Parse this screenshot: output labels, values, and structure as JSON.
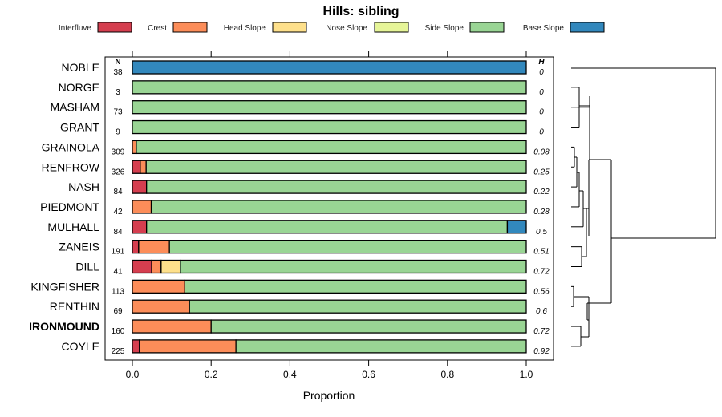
{
  "chart_data": {
    "type": "bar",
    "orientation": "horizontal",
    "stacked": true,
    "title": "Hills: sibling",
    "xlabel": "Proportion",
    "ylabel": "",
    "xlim": [
      0,
      1
    ],
    "xticks": [
      "0.0",
      "0.2",
      "0.4",
      "0.6",
      "0.8",
      "1.0"
    ],
    "legend_position": "top",
    "n_header": "N",
    "h_header": "H",
    "series": [
      {
        "name": "Interfluve",
        "color": "#d53e4f"
      },
      {
        "name": "Crest",
        "color": "#fc8d59"
      },
      {
        "name": "Head Slope",
        "color": "#fee08b"
      },
      {
        "name": "Nose Slope",
        "color": "#e6f598"
      },
      {
        "name": "Side Slope",
        "color": "#99d594"
      },
      {
        "name": "Base Slope",
        "color": "#3288bd"
      }
    ],
    "rows": [
      {
        "label": "NOBLE",
        "bold": false,
        "n": "38",
        "h": "0",
        "values": [
          0,
          0,
          0,
          0,
          0,
          1.0
        ]
      },
      {
        "label": "NORGE",
        "bold": false,
        "n": "3",
        "h": "0",
        "values": [
          0,
          0,
          0,
          0,
          1.0,
          0
        ]
      },
      {
        "label": "MASHAM",
        "bold": false,
        "n": "73",
        "h": "0",
        "values": [
          0,
          0,
          0,
          0,
          1.0,
          0
        ]
      },
      {
        "label": "GRANT",
        "bold": false,
        "n": "9",
        "h": "0",
        "values": [
          0,
          0,
          0,
          0,
          1.0,
          0
        ]
      },
      {
        "label": "GRAINOLA",
        "bold": false,
        "n": "309",
        "h": "0.08",
        "values": [
          0,
          0.01,
          0,
          0,
          0.99,
          0
        ]
      },
      {
        "label": "RENFROW",
        "bold": false,
        "n": "326",
        "h": "0.25",
        "values": [
          0.02,
          0.015,
          0,
          0,
          0.965,
          0
        ]
      },
      {
        "label": "NASH",
        "bold": false,
        "n": "84",
        "h": "0.22",
        "values": [
          0.036,
          0,
          0,
          0,
          0.964,
          0
        ]
      },
      {
        "label": "PIEDMONT",
        "bold": false,
        "n": "42",
        "h": "0.28",
        "values": [
          0,
          0.048,
          0,
          0,
          0.952,
          0
        ]
      },
      {
        "label": "MULHALL",
        "bold": false,
        "n": "84",
        "h": "0.5",
        "values": [
          0.036,
          0,
          0,
          0,
          0.916,
          0.048
        ]
      },
      {
        "label": "ZANEIS",
        "bold": false,
        "n": "191",
        "h": "0.51",
        "values": [
          0.016,
          0.078,
          0,
          0,
          0.906,
          0
        ]
      },
      {
        "label": "DILL",
        "bold": false,
        "n": "41",
        "h": "0.72",
        "values": [
          0.049,
          0.024,
          0.049,
          0,
          0.878,
          0
        ]
      },
      {
        "label": "KINGFISHER",
        "bold": false,
        "n": "113",
        "h": "0.56",
        "values": [
          0,
          0.133,
          0,
          0,
          0.867,
          0
        ]
      },
      {
        "label": "RENTHIN",
        "bold": false,
        "n": "69",
        "h": "0.6",
        "values": [
          0,
          0.145,
          0,
          0,
          0.855,
          0
        ]
      },
      {
        "label": "IRONMOUND",
        "bold": true,
        "n": "160",
        "h": "0.72",
        "values": [
          0,
          0.2,
          0,
          0,
          0.8,
          0
        ]
      },
      {
        "label": "COYLE",
        "bold": false,
        "n": "225",
        "h": "0.92",
        "values": [
          0.018,
          0.245,
          0,
          0,
          0.737,
          0
        ]
      }
    ]
  }
}
